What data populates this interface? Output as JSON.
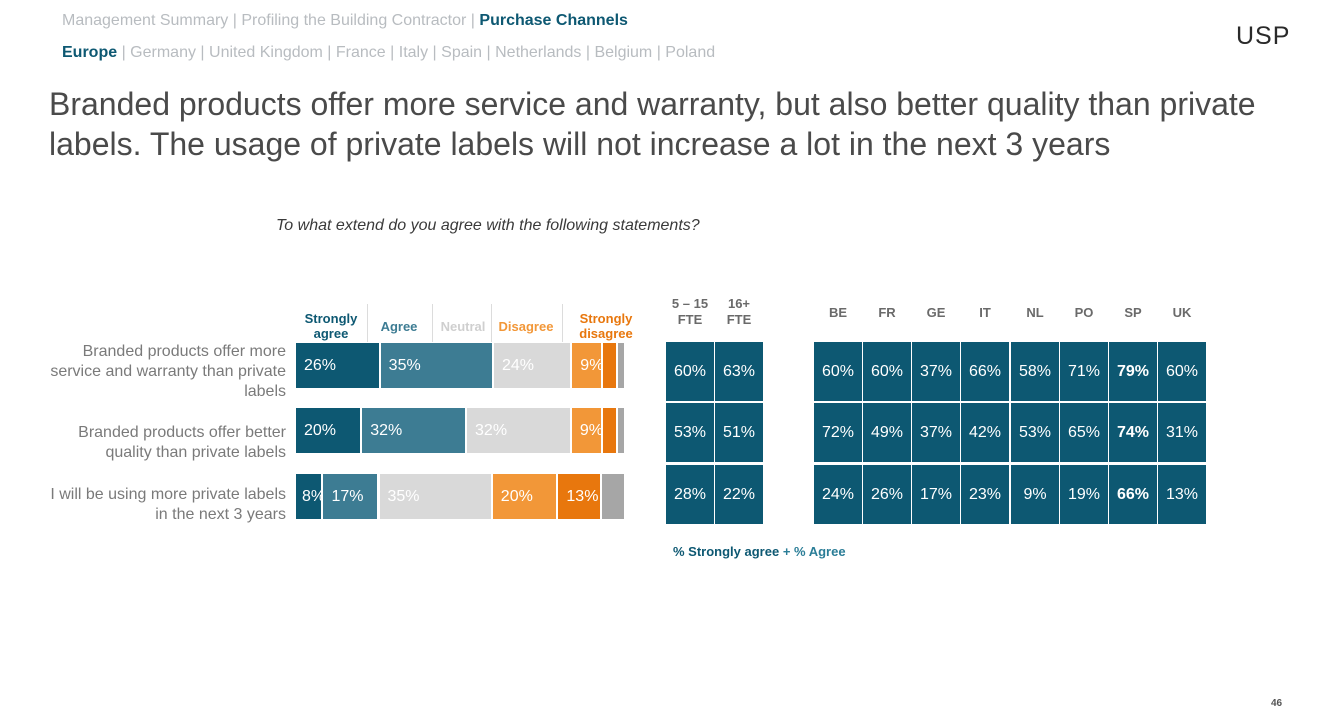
{
  "nav": {
    "sections": [
      "Management Summary",
      "Profiling the Building Contractor",
      "Purchase Channels"
    ],
    "active_section": "Purchase Channels",
    "regions": [
      "Europe",
      "Germany",
      "United Kingdom",
      "France",
      "Italy",
      "Spain",
      "Netherlands",
      "Belgium",
      "Poland"
    ],
    "active_region": "Europe"
  },
  "logo": "USP",
  "headline": "Branded products offer more service and warranty, but also better quality than private labels. The usage of private labels will not increase a lot in the next 3 years",
  "question": "To what extend do you agree with the following statements?",
  "footnote": {
    "part1": "% Strongly agree",
    "part2": "+ % Agree"
  },
  "page_number": "46",
  "colors": {
    "strongly_agree": "#0d5872",
    "agree": "#3d7c93",
    "neutral": "#d9d9d9",
    "disagree": "#f29738",
    "strongly_disagree": "#e8770d",
    "no_answer": "#a6a6a6",
    "table": "#0d5872"
  },
  "chart_data": [
    {
      "type": "bar",
      "stacked": true,
      "orientation": "horizontal",
      "title": "To what extend do you agree with the following statements?",
      "categories": [
        "Branded products offer more service and warranty than private labels",
        "Branded products offer better quality than private labels",
        "I will be using more private labels in the next 3 years"
      ],
      "legend": [
        "Strongly agree",
        "Agree",
        "Neutral",
        "Disagree",
        "Strongly disagree"
      ],
      "legend_labels": [
        "Strongly\nagree",
        "Agree",
        "Neutral",
        "Disagree",
        "Strongly\ndisagree"
      ],
      "series": [
        {
          "name": "Strongly agree",
          "values": [
            26,
            20,
            8
          ],
          "labels": [
            "26%",
            "20%",
            "8%"
          ]
        },
        {
          "name": "Agree",
          "values": [
            35,
            32,
            17
          ],
          "labels": [
            "35%",
            "32%",
            "17%"
          ]
        },
        {
          "name": "Neutral",
          "values": [
            24,
            32,
            35
          ],
          "labels": [
            "24%",
            "32%",
            "35%"
          ]
        },
        {
          "name": "Disagree",
          "values": [
            9,
            9,
            20
          ],
          "labels": [
            "9%",
            "9%",
            "20%"
          ]
        },
        {
          "name": "Strongly disagree",
          "values": [
            4,
            4,
            13
          ],
          "labels": [
            "",
            "",
            "13%"
          ]
        },
        {
          "values": [
            2,
            2,
            7
          ],
          "labels": [
            "",
            "",
            ""
          ]
        }
      ]
    },
    {
      "type": "table",
      "title": "% Strongly agree + % Agree",
      "columns": [
        "5 – 15\nFTE",
        "16+\nFTE",
        "BE",
        "FR",
        "GE",
        "IT",
        "NL",
        "PO",
        "SP",
        "UK"
      ],
      "rows": [
        [
          "60%",
          "63%",
          "60%",
          "60%",
          "37%",
          "66%",
          "58%",
          "71%",
          "79%",
          "60%"
        ],
        [
          "53%",
          "51%",
          "72%",
          "49%",
          "37%",
          "42%",
          "53%",
          "65%",
          "74%",
          "31%"
        ],
        [
          "28%",
          "22%",
          "24%",
          "26%",
          "17%",
          "23%",
          "9%",
          "19%",
          "66%",
          "13%"
        ]
      ],
      "highlight_column": "SP"
    }
  ]
}
